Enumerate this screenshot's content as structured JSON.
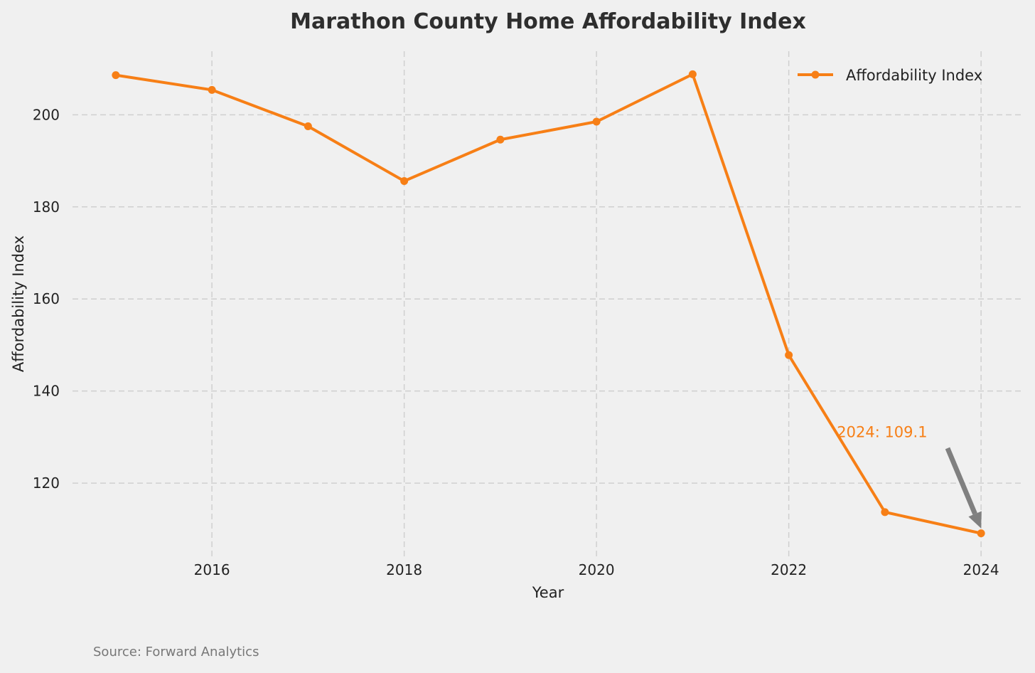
{
  "chart_data": {
    "type": "line",
    "title": "Marathon County Home Affordability Index",
    "xlabel": "Year",
    "ylabel": "Affordability Index",
    "x": [
      2015,
      2016,
      2017,
      2018,
      2019,
      2020,
      2021,
      2022,
      2023,
      2024
    ],
    "series": [
      {
        "name": "Affordability Index",
        "color": "#f77f16",
        "values": [
          208.6,
          205.4,
          197.5,
          185.6,
          194.6,
          198.5,
          208.8,
          147.8,
          113.7,
          109.1
        ]
      }
    ],
    "xlim": [
      2014.55,
      2024.45
    ],
    "ylim": [
      104.1,
      213.8
    ],
    "xticks": [
      "2016",
      "2018",
      "2020",
      "2022",
      "2024"
    ],
    "yticks": [
      "120",
      "140",
      "160",
      "180",
      "200"
    ],
    "grid": true,
    "legend": "top-right",
    "annotation": {
      "text": "2024: 109.1",
      "point": [
        2024,
        109.1
      ],
      "text_pos": [
        2022.5,
        130
      ],
      "color": "#f77f16",
      "arrow_color": "#808080"
    },
    "source": "Source: Forward Analytics"
  }
}
